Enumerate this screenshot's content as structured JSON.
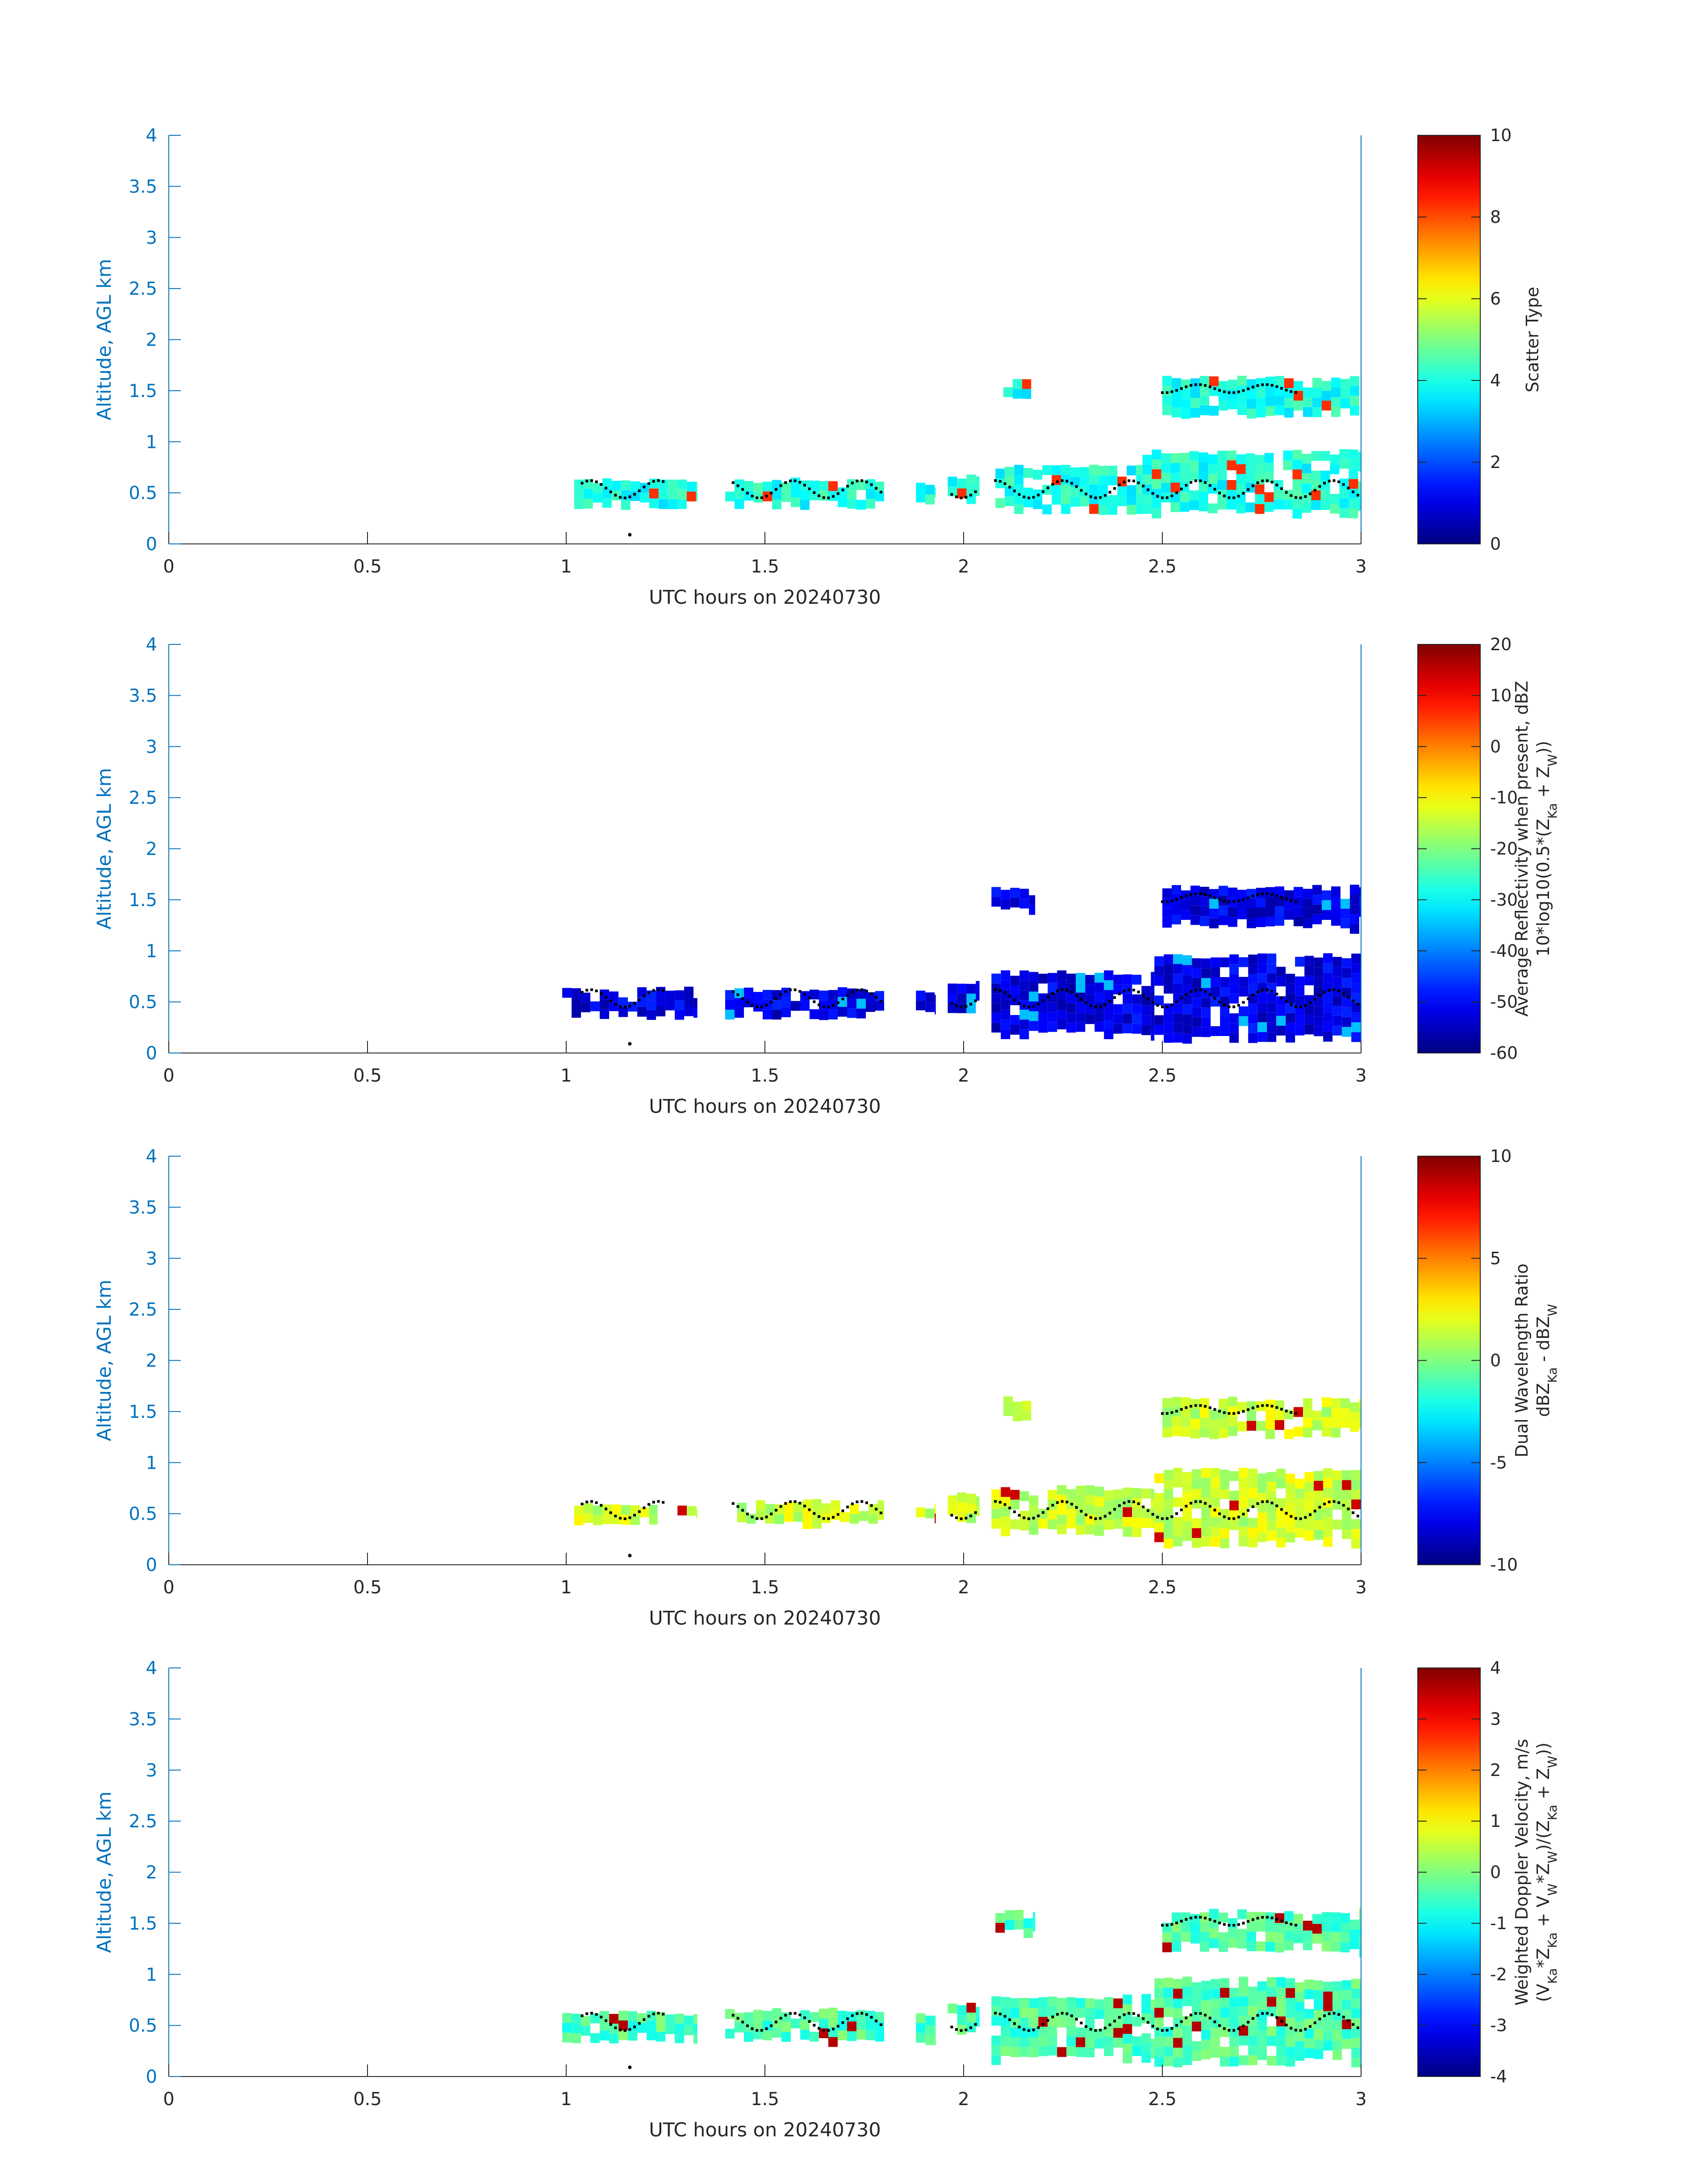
{
  "figure": {
    "type": "multi-panel time-height radar display",
    "y_axis_color": "#0072bd",
    "text_color": "#262626",
    "colormap": "jet"
  },
  "chart_data": [
    {
      "type": "heatmap",
      "title": "",
      "xlabel": "UTC hours on 20240730",
      "ylabel": "Altitude, AGL km",
      "xlim": [
        0,
        3
      ],
      "ylim": [
        0,
        4
      ],
      "xticks": [
        "0",
        "0.5",
        "1",
        "1.5",
        "2",
        "2.5",
        "3"
      ],
      "yticks": [
        "0",
        "0.5",
        "1",
        "1.5",
        "2",
        "2.5",
        "3",
        "3.5",
        "4"
      ],
      "colorbar": {
        "label_lines": [
          "Scatter Type"
        ],
        "range": [
          0,
          10
        ],
        "ticks": [
          "0",
          "2",
          "4",
          "6",
          "8",
          "10"
        ]
      },
      "typical_value": 4,
      "outlier_value": 8.3,
      "layers": [
        {
          "x": [
            1.02,
            1.33
          ],
          "y": [
            0.42,
            0.62
          ]
        },
        {
          "x": [
            1.4,
            1.8
          ],
          "y": [
            0.42,
            0.62
          ]
        },
        {
          "x": [
            1.88,
            1.93
          ],
          "y": [
            0.45,
            0.58
          ]
        },
        {
          "x": [
            1.96,
            2.04
          ],
          "y": [
            0.5,
            0.65
          ]
        },
        {
          "x": [
            2.08,
            2.45
          ],
          "y": [
            0.38,
            0.75
          ]
        },
        {
          "x": [
            2.45,
            3.0
          ],
          "y": [
            0.35,
            0.9
          ]
        },
        {
          "x": [
            2.1,
            2.17
          ],
          "y": [
            1.45,
            1.62
          ]
        },
        {
          "x": [
            2.5,
            3.0
          ],
          "y": [
            1.3,
            1.62
          ]
        }
      ],
      "dots": [
        [
          1.16,
          0.09
        ]
      ]
    },
    {
      "type": "heatmap",
      "title": "",
      "xlabel": "UTC hours on 20240730",
      "ylabel": "Altitude, AGL km",
      "xlim": [
        0,
        3
      ],
      "ylim": [
        0,
        4
      ],
      "xticks": [
        "0",
        "0.5",
        "1",
        "1.5",
        "2",
        "2.5",
        "3"
      ],
      "yticks": [
        "0",
        "0.5",
        "1",
        "1.5",
        "2",
        "2.5",
        "3",
        "3.5",
        "4"
      ],
      "colorbar": {
        "label_lines": [
          "Average Reflectivity when present, dBZ",
          "10*log10(0.5*(Z_Ka + Z_W))"
        ],
        "range": [
          -60,
          20
        ],
        "ticks": [
          "-60",
          "-50",
          "-40",
          "-30",
          "-20",
          "-10",
          "0",
          "10",
          "20"
        ]
      },
      "typical_value": -52,
      "outlier_value": -35,
      "layers": [
        {
          "x": [
            0.99,
            1.33
          ],
          "y": [
            0.4,
            0.62
          ]
        },
        {
          "x": [
            1.4,
            1.8
          ],
          "y": [
            0.4,
            0.62
          ]
        },
        {
          "x": [
            1.88,
            1.93
          ],
          "y": [
            0.42,
            0.6
          ]
        },
        {
          "x": [
            1.96,
            2.04
          ],
          "y": [
            0.45,
            0.7
          ]
        },
        {
          "x": [
            2.07,
            2.48
          ],
          "y": [
            0.22,
            0.78
          ]
        },
        {
          "x": [
            2.48,
            3.0
          ],
          "y": [
            0.18,
            0.95
          ]
        },
        {
          "x": [
            2.07,
            2.18
          ],
          "y": [
            1.45,
            1.62
          ]
        },
        {
          "x": [
            2.5,
            3.0
          ],
          "y": [
            1.28,
            1.62
          ]
        }
      ],
      "dots": [
        [
          1.16,
          0.09
        ]
      ]
    },
    {
      "type": "heatmap",
      "title": "",
      "xlabel": "UTC hours on 20240730",
      "ylabel": "Altitude, AGL km",
      "xlim": [
        0,
        3
      ],
      "ylim": [
        0,
        4
      ],
      "xticks": [
        "0",
        "0.5",
        "1",
        "1.5",
        "2",
        "2.5",
        "3"
      ],
      "yticks": [
        "0",
        "0.5",
        "1",
        "1.5",
        "2",
        "2.5",
        "3",
        "3.5",
        "4"
      ],
      "colorbar": {
        "label_lines": [
          "Dual Wavelength Ratio",
          "dBZ_Ka - dBZ_W"
        ],
        "range": [
          -10,
          10
        ],
        "ticks": [
          "-10",
          "-5",
          "0",
          "5",
          "10"
        ]
      },
      "typical_value": 1.5,
      "outlier_value": 8.5,
      "layers": [
        {
          "x": [
            1.02,
            1.23
          ],
          "y": [
            0.45,
            0.58
          ]
        },
        {
          "x": [
            1.28,
            1.33
          ],
          "y": [
            0.48,
            0.58
          ]
        },
        {
          "x": [
            1.43,
            1.8
          ],
          "y": [
            0.45,
            0.62
          ]
        },
        {
          "x": [
            1.88,
            1.93
          ],
          "y": [
            0.45,
            0.58
          ]
        },
        {
          "x": [
            1.96,
            2.04
          ],
          "y": [
            0.48,
            0.68
          ]
        },
        {
          "x": [
            2.07,
            2.48
          ],
          "y": [
            0.35,
            0.75
          ]
        },
        {
          "x": [
            2.48,
            3.0
          ],
          "y": [
            0.25,
            0.92
          ]
        },
        {
          "x": [
            2.1,
            2.17
          ],
          "y": [
            1.45,
            1.62
          ]
        },
        {
          "x": [
            2.5,
            3.0
          ],
          "y": [
            1.3,
            1.62
          ]
        }
      ],
      "dots": [
        [
          1.16,
          0.09
        ]
      ]
    },
    {
      "type": "heatmap",
      "title": "",
      "xlabel": "UTC hours on 20240730",
      "ylabel": "Altitude, AGL km",
      "xlim": [
        0,
        3
      ],
      "ylim": [
        0,
        4
      ],
      "xticks": [
        "0",
        "0.5",
        "1",
        "1.5",
        "2",
        "2.5",
        "3"
      ],
      "yticks": [
        "0",
        "0.5",
        "1",
        "1.5",
        "2",
        "2.5",
        "3",
        "3.5",
        "4"
      ],
      "colorbar": {
        "label_lines": [
          "Weighted Doppler Velocity, m/s",
          "(V_Ka*Z_Ka + V_W*Z_W)/(Z_Ka + Z_W))"
        ],
        "range": [
          -4,
          4
        ],
        "ticks": [
          "-4",
          "-3",
          "-2",
          "-1",
          "0",
          "1",
          "2",
          "3",
          "4"
        ]
      },
      "typical_value": -0.4,
      "outlier_value": 3.6,
      "layers": [
        {
          "x": [
            0.99,
            1.33
          ],
          "y": [
            0.4,
            0.62
          ]
        },
        {
          "x": [
            1.4,
            1.8
          ],
          "y": [
            0.4,
            0.65
          ]
        },
        {
          "x": [
            1.88,
            1.93
          ],
          "y": [
            0.35,
            0.6
          ]
        },
        {
          "x": [
            1.96,
            2.04
          ],
          "y": [
            0.45,
            0.7
          ]
        },
        {
          "x": [
            2.07,
            2.48
          ],
          "y": [
            0.2,
            0.78
          ]
        },
        {
          "x": [
            2.48,
            3.0
          ],
          "y": [
            0.18,
            0.95
          ]
        },
        {
          "x": [
            2.08,
            2.18
          ],
          "y": [
            1.45,
            1.62
          ]
        },
        {
          "x": [
            2.5,
            3.0
          ],
          "y": [
            1.28,
            1.62
          ]
        }
      ],
      "dots": [
        [
          1.16,
          0.09
        ]
      ]
    }
  ],
  "cloud_base_markers": {
    "lower_layer": {
      "x_ranges": [
        [
          1.04,
          1.25
        ],
        [
          1.42,
          1.8
        ],
        [
          1.97,
          2.04
        ],
        [
          2.08,
          3.0
        ]
      ],
      "y_range": [
        0.45,
        0.62
      ]
    },
    "upper_layer": {
      "x_ranges": [
        [
          2.5,
          2.84
        ]
      ],
      "y_range": [
        1.48,
        1.56
      ]
    }
  }
}
